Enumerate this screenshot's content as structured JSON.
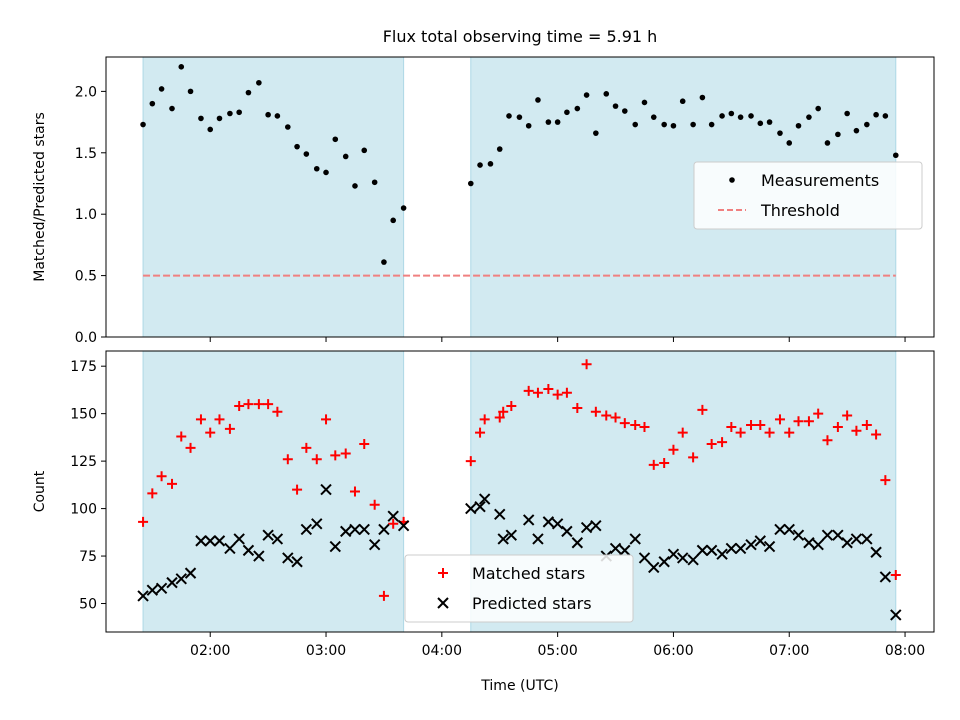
{
  "chart_data": {
    "type": "scatter",
    "title": "Flux total observing time = 5.91 h",
    "x_unit": "hours UTC",
    "xlim": [
      1.1,
      8.25
    ],
    "xlabel": "Time (UTC)",
    "x_ticks": [
      2,
      3,
      4,
      5,
      6,
      7,
      8
    ],
    "x_tick_labels": [
      "02:00",
      "03:00",
      "04:00",
      "05:00",
      "06:00",
      "07:00",
      "08:00"
    ],
    "shaded_intervals": [
      [
        1.42,
        3.67
      ],
      [
        4.25,
        7.92
      ]
    ],
    "shade_color": "#add8e6",
    "panels": [
      {
        "ylabel": "Matched/Predicted stars",
        "ylim": [
          0,
          2.28
        ],
        "y_ticks": [
          0.0,
          0.5,
          1.0,
          1.5,
          2.0
        ],
        "y_tick_labels": [
          "0.0",
          "0.5",
          "1.0",
          "1.5",
          "2.0"
        ],
        "legend_position": "center-right",
        "legend": [
          {
            "label": "Measurements",
            "marker": "dot",
            "color": "#000000"
          },
          {
            "label": "Threshold",
            "marker": "dashed-line",
            "color": "#f08080"
          }
        ],
        "threshold": {
          "y": 0.5,
          "x_range": [
            1.42,
            7.92
          ],
          "color": "#f08080"
        },
        "series": [
          {
            "name": "Measurements",
            "marker": "dot",
            "color": "#000000",
            "points": [
              [
                1.42,
                1.73
              ],
              [
                1.5,
                1.9
              ],
              [
                1.58,
                2.02
              ],
              [
                1.67,
                1.86
              ],
              [
                1.75,
                2.2
              ],
              [
                1.83,
                2.0
              ],
              [
                1.92,
                1.78
              ],
              [
                2.0,
                1.69
              ],
              [
                2.08,
                1.78
              ],
              [
                2.17,
                1.82
              ],
              [
                2.25,
                1.83
              ],
              [
                2.33,
                1.99
              ],
              [
                2.42,
                2.07
              ],
              [
                2.5,
                1.81
              ],
              [
                2.58,
                1.8
              ],
              [
                2.67,
                1.71
              ],
              [
                2.75,
                1.55
              ],
              [
                2.83,
                1.49
              ],
              [
                2.92,
                1.37
              ],
              [
                3.0,
                1.34
              ],
              [
                3.08,
                1.61
              ],
              [
                3.17,
                1.47
              ],
              [
                3.25,
                1.23
              ],
              [
                3.33,
                1.52
              ],
              [
                3.42,
                1.26
              ],
              [
                3.5,
                0.61
              ],
              [
                3.58,
                0.95
              ],
              [
                3.67,
                1.05
              ],
              [
                4.25,
                1.25
              ],
              [
                4.33,
                1.4
              ],
              [
                4.42,
                1.41
              ],
              [
                4.5,
                1.53
              ],
              [
                4.58,
                1.8
              ],
              [
                4.67,
                1.79
              ],
              [
                4.75,
                1.72
              ],
              [
                4.83,
                1.93
              ],
              [
                4.92,
                1.75
              ],
              [
                5.0,
                1.75
              ],
              [
                5.08,
                1.83
              ],
              [
                5.17,
                1.86
              ],
              [
                5.25,
                1.97
              ],
              [
                5.33,
                1.66
              ],
              [
                5.42,
                1.98
              ],
              [
                5.5,
                1.88
              ],
              [
                5.58,
                1.84
              ],
              [
                5.67,
                1.73
              ],
              [
                5.75,
                1.91
              ],
              [
                5.83,
                1.79
              ],
              [
                5.92,
                1.73
              ],
              [
                6.0,
                1.72
              ],
              [
                6.08,
                1.92
              ],
              [
                6.17,
                1.73
              ],
              [
                6.25,
                1.95
              ],
              [
                6.33,
                1.73
              ],
              [
                6.42,
                1.8
              ],
              [
                6.5,
                1.82
              ],
              [
                6.58,
                1.79
              ],
              [
                6.67,
                1.8
              ],
              [
                6.75,
                1.74
              ],
              [
                6.83,
                1.75
              ],
              [
                6.92,
                1.66
              ],
              [
                7.0,
                1.58
              ],
              [
                7.08,
                1.72
              ],
              [
                7.17,
                1.79
              ],
              [
                7.25,
                1.86
              ],
              [
                7.33,
                1.58
              ],
              [
                7.42,
                1.65
              ],
              [
                7.5,
                1.82
              ],
              [
                7.58,
                1.68
              ],
              [
                7.67,
                1.73
              ],
              [
                7.75,
                1.81
              ],
              [
                7.83,
                1.8
              ],
              [
                7.92,
                1.48
              ]
            ]
          }
        ]
      },
      {
        "ylabel": "Count",
        "ylim": [
          35,
          183
        ],
        "y_ticks": [
          50,
          75,
          100,
          125,
          150,
          175
        ],
        "y_tick_labels": [
          "50",
          "75",
          "100",
          "125",
          "150",
          "175"
        ],
        "legend_position": "bottom-center",
        "legend": [
          {
            "label": "Matched stars",
            "marker": "plus",
            "color": "#ff0000"
          },
          {
            "label": "Predicted stars",
            "marker": "x",
            "color": "#000000"
          }
        ],
        "series": [
          {
            "name": "Matched stars",
            "marker": "plus",
            "color": "#ff0000",
            "points": [
              [
                1.42,
                93
              ],
              [
                1.5,
                108
              ],
              [
                1.58,
                117
              ],
              [
                1.67,
                113
              ],
              [
                1.75,
                138
              ],
              [
                1.83,
                132
              ],
              [
                1.92,
                147
              ],
              [
                2.0,
                140
              ],
              [
                2.08,
                147
              ],
              [
                2.17,
                142
              ],
              [
                2.25,
                154
              ],
              [
                2.33,
                155
              ],
              [
                2.42,
                155
              ],
              [
                2.5,
                155
              ],
              [
                2.58,
                151
              ],
              [
                2.67,
                126
              ],
              [
                2.75,
                110
              ],
              [
                2.83,
                132
              ],
              [
                2.92,
                126
              ],
              [
                3.0,
                147
              ],
              [
                3.08,
                128
              ],
              [
                3.17,
                129
              ],
              [
                3.25,
                109
              ],
              [
                3.33,
                134
              ],
              [
                3.42,
                102
              ],
              [
                3.5,
                54
              ],
              [
                3.58,
                92
              ],
              [
                3.67,
                93
              ],
              [
                4.25,
                125
              ],
              [
                4.33,
                140
              ],
              [
                4.37,
                147
              ],
              [
                4.5,
                148
              ],
              [
                4.53,
                151
              ],
              [
                4.6,
                154
              ],
              [
                4.75,
                162
              ],
              [
                4.83,
                161
              ],
              [
                4.92,
                163
              ],
              [
                5.0,
                160
              ],
              [
                5.08,
                161
              ],
              [
                5.17,
                153
              ],
              [
                5.25,
                176
              ],
              [
                5.33,
                151
              ],
              [
                5.42,
                149
              ],
              [
                5.5,
                148
              ],
              [
                5.58,
                145
              ],
              [
                5.67,
                144
              ],
              [
                5.75,
                143
              ],
              [
                5.83,
                123
              ],
              [
                5.92,
                124
              ],
              [
                6.0,
                131
              ],
              [
                6.08,
                140
              ],
              [
                6.17,
                127
              ],
              [
                6.25,
                152
              ],
              [
                6.33,
                134
              ],
              [
                6.42,
                135
              ],
              [
                6.5,
                143
              ],
              [
                6.58,
                140
              ],
              [
                6.67,
                144
              ],
              [
                6.75,
                144
              ],
              [
                6.83,
                140
              ],
              [
                6.92,
                147
              ],
              [
                7.0,
                140
              ],
              [
                7.08,
                146
              ],
              [
                7.17,
                146
              ],
              [
                7.25,
                150
              ],
              [
                7.33,
                136
              ],
              [
                7.42,
                143
              ],
              [
                7.5,
                149
              ],
              [
                7.58,
                141
              ],
              [
                7.67,
                144
              ],
              [
                7.75,
                139
              ],
              [
                7.83,
                115
              ],
              [
                7.92,
                65
              ]
            ]
          },
          {
            "name": "Predicted stars",
            "marker": "x",
            "color": "#000000",
            "points": [
              [
                1.42,
                54
              ],
              [
                1.5,
                57
              ],
              [
                1.58,
                58
              ],
              [
                1.67,
                61
              ],
              [
                1.75,
                63
              ],
              [
                1.83,
                66
              ],
              [
                1.92,
                83
              ],
              [
                2.0,
                83
              ],
              [
                2.08,
                83
              ],
              [
                2.17,
                79
              ],
              [
                2.25,
                84
              ],
              [
                2.33,
                78
              ],
              [
                2.42,
                75
              ],
              [
                2.5,
                86
              ],
              [
                2.58,
                84
              ],
              [
                2.67,
                74
              ],
              [
                2.75,
                72
              ],
              [
                2.83,
                89
              ],
              [
                2.92,
                92
              ],
              [
                3.0,
                110
              ],
              [
                3.08,
                80
              ],
              [
                3.17,
                88
              ],
              [
                3.25,
                89
              ],
              [
                3.33,
                89
              ],
              [
                3.42,
                81
              ],
              [
                3.5,
                89
              ],
              [
                3.58,
                96
              ],
              [
                3.67,
                91
              ],
              [
                4.25,
                100
              ],
              [
                4.33,
                101
              ],
              [
                4.37,
                105
              ],
              [
                4.5,
                97
              ],
              [
                4.53,
                84
              ],
              [
                4.6,
                86
              ],
              [
                4.75,
                94
              ],
              [
                4.83,
                84
              ],
              [
                4.92,
                93
              ],
              [
                5.0,
                92
              ],
              [
                5.08,
                88
              ],
              [
                5.17,
                82
              ],
              [
                5.25,
                90
              ],
              [
                5.33,
                91
              ],
              [
                5.42,
                75
              ],
              [
                5.5,
                79
              ],
              [
                5.58,
                78
              ],
              [
                5.67,
                84
              ],
              [
                5.75,
                74
              ],
              [
                5.83,
                69
              ],
              [
                5.92,
                72
              ],
              [
                6.0,
                76
              ],
              [
                6.08,
                74
              ],
              [
                6.17,
                73
              ],
              [
                6.25,
                78
              ],
              [
                6.33,
                78
              ],
              [
                6.42,
                76
              ],
              [
                6.5,
                79
              ],
              [
                6.58,
                79
              ],
              [
                6.67,
                81
              ],
              [
                6.75,
                83
              ],
              [
                6.83,
                80
              ],
              [
                6.92,
                89
              ],
              [
                7.0,
                89
              ],
              [
                7.08,
                86
              ],
              [
                7.17,
                82
              ],
              [
                7.25,
                81
              ],
              [
                7.33,
                86
              ],
              [
                7.42,
                86
              ],
              [
                7.5,
                82
              ],
              [
                7.58,
                84
              ],
              [
                7.67,
                84
              ],
              [
                7.75,
                77
              ],
              [
                7.83,
                64
              ],
              [
                7.92,
                44
              ]
            ]
          }
        ]
      }
    ]
  }
}
